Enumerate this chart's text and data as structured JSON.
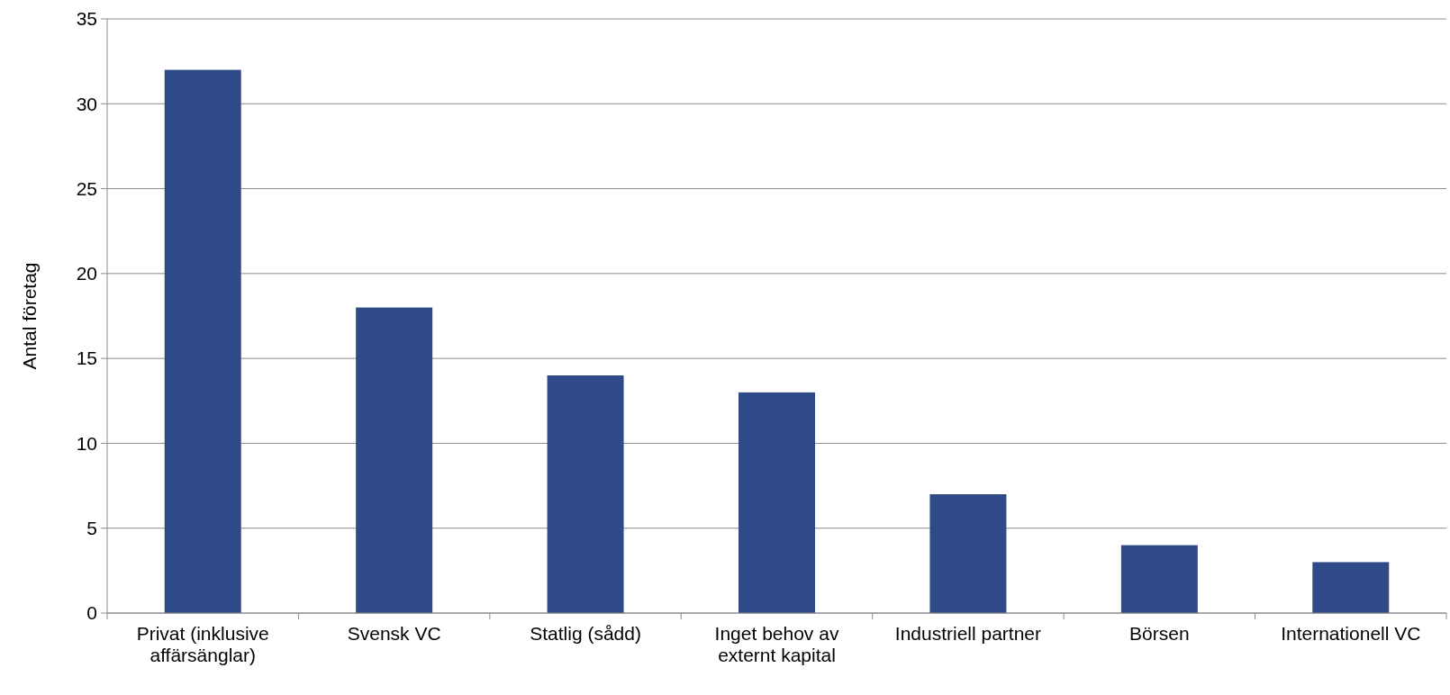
{
  "chart_data": {
    "type": "bar",
    "ylabel": "Antal företag",
    "categories": [
      "Privat (inklusive affärsänglar)",
      "Svensk VC",
      "Statlig (sådd)",
      "Inget behov av externt kapital",
      "Industriell partner",
      "Börsen",
      "Internationell VC"
    ],
    "values": [
      32,
      18,
      14,
      13,
      7,
      4,
      3
    ],
    "color": "#2e4a87",
    "ylim": [
      0,
      35
    ],
    "yticks": [
      0,
      5,
      10,
      15,
      20,
      25,
      30,
      35
    ],
    "grid": "y"
  }
}
